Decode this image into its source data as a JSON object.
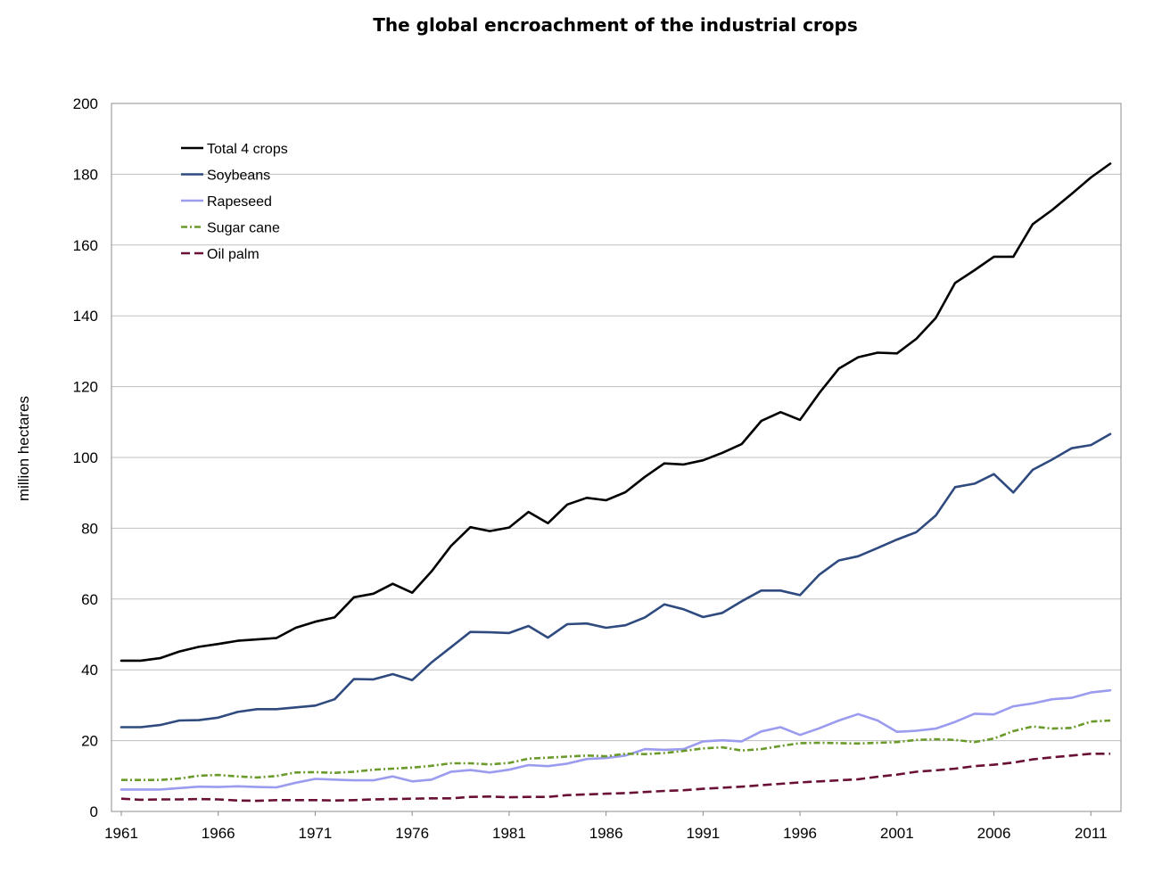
{
  "chart_data": {
    "type": "line",
    "title": "The global encroachment of the industrial crops",
    "xlabel": "",
    "ylabel": "million hectares",
    "ylim": [
      0,
      200
    ],
    "yticks": [
      "0",
      "20",
      "40",
      "60",
      "80",
      "100",
      "120",
      "140",
      "160",
      "180",
      "200"
    ],
    "xticks": [
      "1961",
      "1966",
      "1971",
      "1976",
      "1981",
      "1986",
      "1991",
      "1996",
      "2001",
      "2006",
      "2011"
    ],
    "grid": "horizontal",
    "legend_position": "top-left",
    "x": [
      1961,
      1962,
      1963,
      1964,
      1965,
      1966,
      1967,
      1968,
      1969,
      1970,
      1971,
      1972,
      1973,
      1974,
      1975,
      1976,
      1977,
      1978,
      1979,
      1980,
      1981,
      1982,
      1983,
      1984,
      1985,
      1986,
      1987,
      1988,
      1989,
      1990,
      1991,
      1992,
      1993,
      1994,
      1995,
      1996,
      1997,
      1998,
      1999,
      2000,
      2001,
      2002,
      2003,
      2004,
      2005,
      2006,
      2007,
      2008,
      2009,
      2010,
      2011,
      2012
    ],
    "series": [
      {
        "name": "Total 4 crops",
        "color": "#000000",
        "dash": "solid",
        "values": [
          42.6,
          42.6,
          43.3,
          45.2,
          46.5,
          47.3,
          48.2,
          48.6,
          49.0,
          51.9,
          53.6,
          54.8,
          60.5,
          61.5,
          64.3,
          61.8,
          67.8,
          75.0,
          80.3,
          79.2,
          80.2,
          84.6,
          81.4,
          86.7,
          88.6,
          87.9,
          90.2,
          94.5,
          98.3,
          98.0,
          99.2,
          101.3,
          103.8,
          110.3,
          112.8,
          110.6,
          118.2,
          125.1,
          128.3,
          129.6,
          129.4,
          133.5,
          139.4,
          149.3,
          152.9,
          156.7,
          156.7,
          165.9,
          169.9,
          174.4,
          179.1,
          183.0
        ]
      },
      {
        "name": "Soybeans",
        "color": "#2e4a7f",
        "dash": "solid",
        "values": [
          23.8,
          23.8,
          24.4,
          25.7,
          25.8,
          26.5,
          28.1,
          28.9,
          28.9,
          29.4,
          29.9,
          31.7,
          37.4,
          37.3,
          38.8,
          37.1,
          42.1,
          46.4,
          50.7,
          50.6,
          50.4,
          52.4,
          49.1,
          52.9,
          53.1,
          51.9,
          52.6,
          54.8,
          58.5,
          57.1,
          54.9,
          56.1,
          59.4,
          62.4,
          62.4,
          61.1,
          66.9,
          70.9,
          72.1,
          74.4,
          76.8,
          78.9,
          83.6,
          91.6,
          92.6,
          95.3,
          90.1,
          96.5,
          99.4,
          102.6,
          103.5,
          106.6
        ]
      },
      {
        "name": "Rapeseed",
        "color": "#9b9bef",
        "dash": "solid",
        "values": [
          6.2,
          6.2,
          6.2,
          6.6,
          7.0,
          6.9,
          7.1,
          6.9,
          6.8,
          8.1,
          9.2,
          9.0,
          8.8,
          8.8,
          9.9,
          8.5,
          9.0,
          11.2,
          11.7,
          11.0,
          11.8,
          13.1,
          12.8,
          13.5,
          14.8,
          15.1,
          15.8,
          17.6,
          17.4,
          17.6,
          19.8,
          20.1,
          19.8,
          22.6,
          23.8,
          21.6,
          23.5,
          25.7,
          27.5,
          25.7,
          22.5,
          22.8,
          23.4,
          25.3,
          27.6,
          27.4,
          29.7,
          30.5,
          31.7,
          32.1,
          33.6,
          34.2
        ]
      },
      {
        "name": "Sugar cane",
        "color": "#6a9a2a",
        "dash": "dashdot",
        "values": [
          8.9,
          8.9,
          8.9,
          9.3,
          10.1,
          10.3,
          9.9,
          9.6,
          10.0,
          11.0,
          11.1,
          10.9,
          11.2,
          11.8,
          12.1,
          12.4,
          12.9,
          13.6,
          13.6,
          13.3,
          13.7,
          14.9,
          15.2,
          15.5,
          15.8,
          15.6,
          16.3,
          16.2,
          16.5,
          17.1,
          17.8,
          18.1,
          17.2,
          17.6,
          18.5,
          19.3,
          19.4,
          19.3,
          19.2,
          19.4,
          19.6,
          20.2,
          20.4,
          20.2,
          19.6,
          20.6,
          22.7,
          24.0,
          23.4,
          23.6,
          25.4,
          25.7
        ]
      },
      {
        "name": "Oil palm",
        "color": "#6a0f35",
        "dash": "dashed",
        "values": [
          3.6,
          3.3,
          3.4,
          3.4,
          3.5,
          3.4,
          3.1,
          3.0,
          3.2,
          3.2,
          3.2,
          3.1,
          3.2,
          3.4,
          3.5,
          3.6,
          3.7,
          3.7,
          4.1,
          4.2,
          4.0,
          4.1,
          4.1,
          4.6,
          4.8,
          5.0,
          5.2,
          5.5,
          5.8,
          6.0,
          6.4,
          6.7,
          7.0,
          7.4,
          7.8,
          8.2,
          8.5,
          8.8,
          9.1,
          9.8,
          10.4,
          11.2,
          11.6,
          12.1,
          12.8,
          13.2,
          13.8,
          14.7,
          15.3,
          15.8,
          16.3,
          16.3
        ]
      }
    ]
  }
}
